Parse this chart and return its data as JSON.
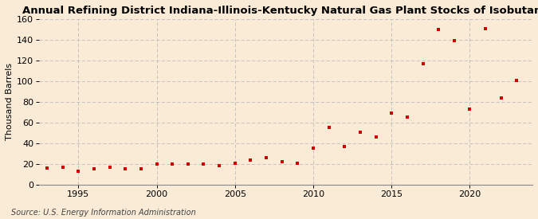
{
  "title": "Annual Refining District Indiana-Illinois-Kentucky Natural Gas Plant Stocks of Isobutane",
  "ylabel": "Thousand Barrels",
  "source": "Source: U.S. Energy Information Administration",
  "background_color": "#faebd7",
  "plot_bg_color": "#faebd7",
  "marker_color": "#cc0000",
  "marker": "s",
  "marker_size": 3.5,
  "years": [
    1993,
    1994,
    1995,
    1996,
    1997,
    1998,
    1999,
    2000,
    2001,
    2002,
    2003,
    2004,
    2005,
    2006,
    2007,
    2008,
    2009,
    2010,
    2011,
    2012,
    2013,
    2014,
    2015,
    2016,
    2017,
    2018,
    2019,
    2020,
    2021,
    2022,
    2023
  ],
  "values": [
    16,
    17,
    13,
    15,
    17,
    15,
    15,
    20,
    20,
    20,
    20,
    18,
    21,
    24,
    26,
    22,
    21,
    35,
    55,
    37,
    51,
    46,
    69,
    65,
    117,
    150,
    139,
    73,
    151,
    84,
    101
  ],
  "ylim": [
    0,
    160
  ],
  "yticks": [
    0,
    20,
    40,
    60,
    80,
    100,
    120,
    140,
    160
  ],
  "xlim": [
    1992.5,
    2024
  ],
  "xticks": [
    1995,
    2000,
    2005,
    2010,
    2015,
    2020
  ],
  "grid_color": "#bbbbbb",
  "title_fontsize": 9.5,
  "label_fontsize": 8,
  "tick_fontsize": 8,
  "source_fontsize": 7
}
